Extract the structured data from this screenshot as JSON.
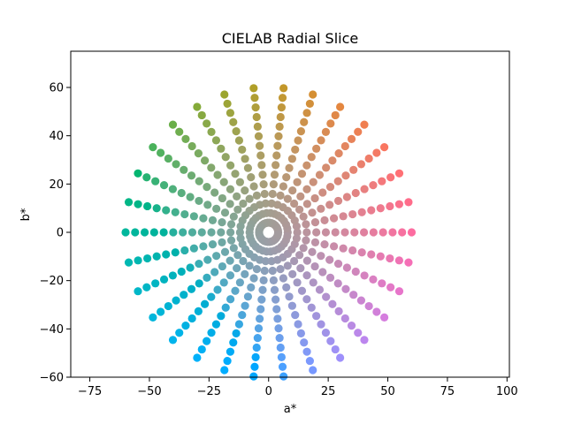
{
  "chart_data": {
    "type": "scatter",
    "title": "CIELAB Radial Slice",
    "xlabel": "a*",
    "ylabel": "b*",
    "xlim": [
      -83,
      101
    ],
    "ylim": [
      -60,
      75
    ],
    "xticks": [
      -75,
      -50,
      -25,
      0,
      25,
      50,
      75,
      100
    ],
    "yticks": [
      -60,
      -40,
      -20,
      0,
      20,
      40,
      60
    ],
    "grid": false,
    "legend": "none",
    "lightness": 65,
    "rings": {
      "count": 15,
      "radius_step": 4,
      "angles_per_ring": 30,
      "angle_step_deg": 12,
      "first_angle_deg": 0
    },
    "ring_radii": [
      4,
      8,
      12,
      16,
      20,
      24,
      28,
      32,
      36,
      40,
      44,
      48,
      52,
      56,
      60
    ],
    "angles_deg": [
      0,
      12,
      24,
      36,
      48,
      60,
      72,
      84,
      96,
      108,
      120,
      132,
      144,
      156,
      168,
      180,
      192,
      204,
      216,
      228,
      240,
      252,
      264,
      276,
      288,
      300,
      312,
      324,
      336,
      348
    ],
    "color_encoding": "LCh(65, radius, angle) shown in sRGB",
    "marker": "filled circle"
  }
}
